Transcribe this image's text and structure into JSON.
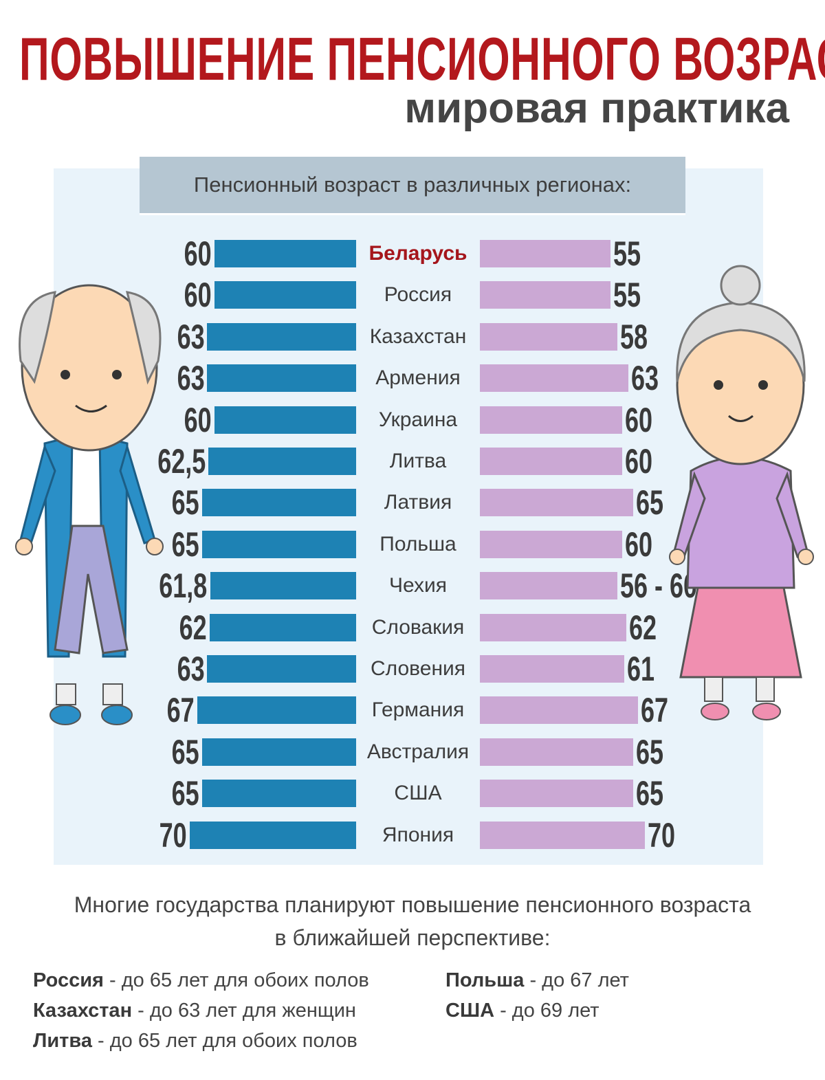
{
  "header": {
    "title": "ПОВЫШЕНИЕ ПЕНСИОННОГО ВОЗРАСТА -",
    "subtitle": "мировая практика"
  },
  "colors": {
    "title": "#b3181d",
    "male_bar": "#1e82b4",
    "female_bar": "#cba8d4",
    "panel": "#e9f3fa",
    "highlight": "#a5161c"
  },
  "chart_data": {
    "type": "bar",
    "title": "Пенсионный возраст в различных регионах:",
    "categories": [
      "Беларусь",
      "Россия",
      "Казахстан",
      "Армения",
      "Украина",
      "Литва",
      "Латвия",
      "Польша",
      "Чехия",
      "Словакия",
      "Словения",
      "Германия",
      "Австралия",
      "США",
      "Япония"
    ],
    "highlight": "Беларусь",
    "series": [
      {
        "name": "male",
        "values": [
          60,
          60,
          63,
          63,
          60,
          62.5,
          65,
          65,
          61.8,
          62,
          63,
          67,
          65,
          65,
          70
        ],
        "labels": [
          "60",
          "60",
          "63",
          "63",
          "60",
          "62,5",
          "65",
          "65",
          "61,8",
          "62",
          "63",
          "67",
          "65",
          "65",
          "70"
        ]
      },
      {
        "name": "female",
        "values": [
          55,
          55,
          58,
          63,
          60,
          60,
          65,
          60,
          58,
          62,
          61,
          67,
          65,
          65,
          70
        ],
        "labels": [
          "55",
          "55",
          "58",
          "63",
          "60",
          "60",
          "65",
          "60",
          "56 - 60",
          "62",
          "61",
          "67",
          "65",
          "65",
          "70"
        ]
      }
    ]
  },
  "footer": {
    "note_line1": "Многие государства планируют повышение пенсионного возраста",
    "note_line2": "в ближайшей перспективе:",
    "plans": [
      {
        "country": "Россия",
        "text": " - до 65 лет для обоих полов"
      },
      {
        "country": "Казахстан",
        "text": " - до 63 лет для женщин"
      },
      {
        "country": "Литва",
        "text": " - до 65 лет для обоих полов"
      },
      {
        "country": "Польша",
        "text": " - до 67 лет"
      },
      {
        "country": "США",
        "text": " - до 69 лет"
      }
    ]
  }
}
